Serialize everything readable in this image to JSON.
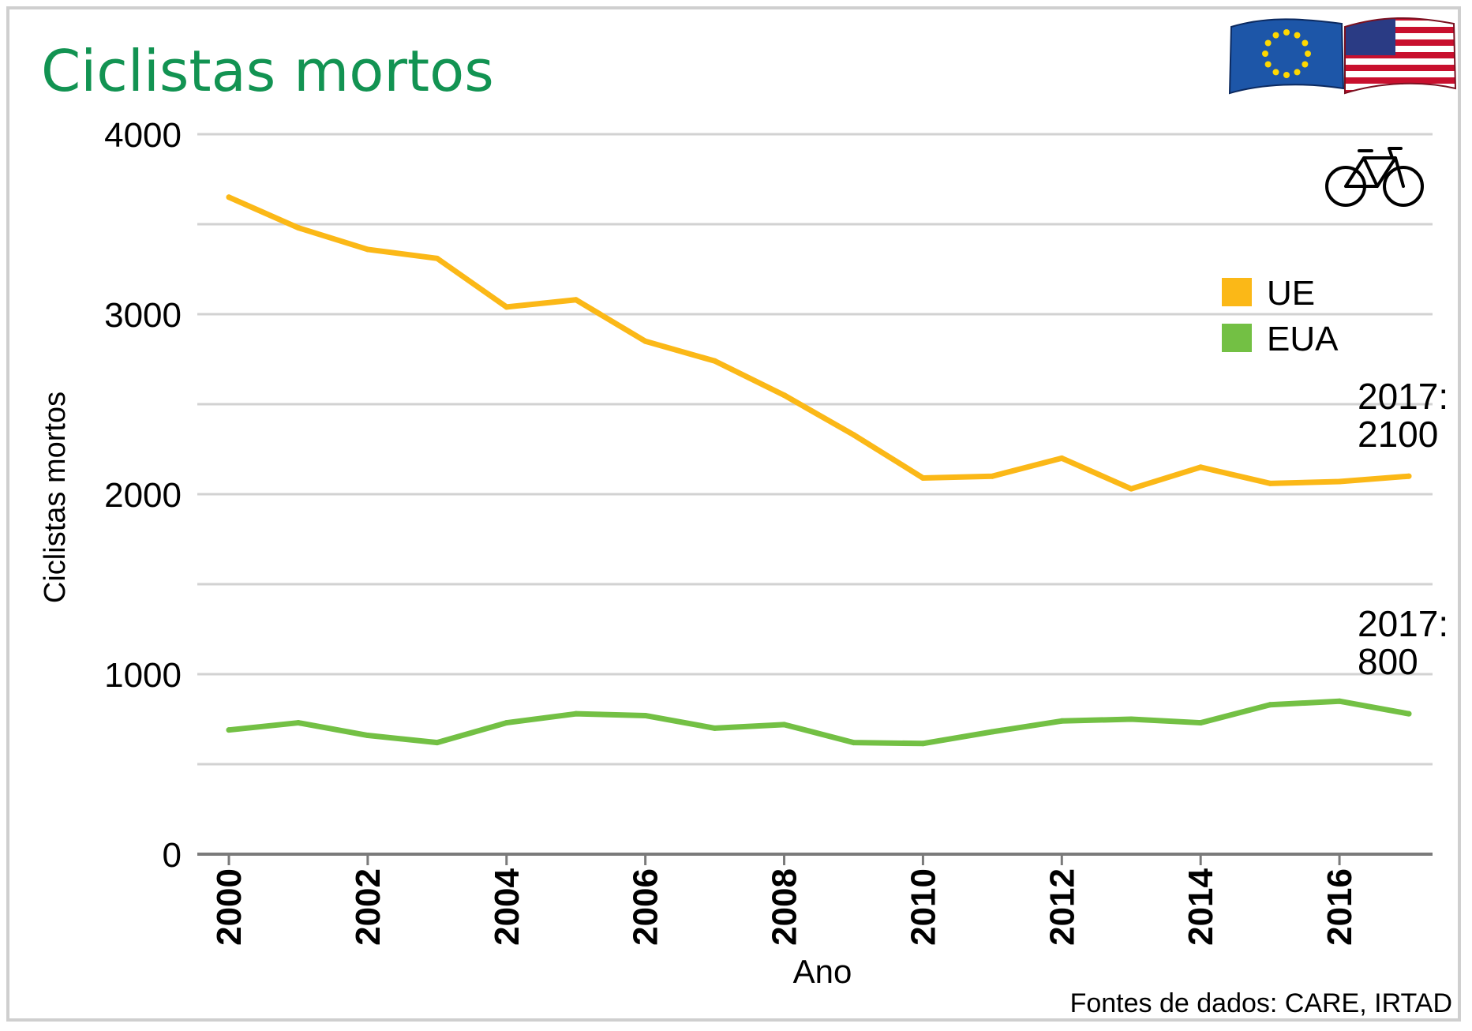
{
  "chart_data": {
    "type": "line",
    "title": "Ciclistas mortos",
    "xlabel": "Ano",
    "ylabel": "Ciclistas mortos",
    "source": "Fontes de dados: CARE, IRTAD",
    "x": [
      2000,
      2001,
      2002,
      2003,
      2004,
      2005,
      2006,
      2007,
      2008,
      2009,
      2010,
      2011,
      2012,
      2013,
      2014,
      2015,
      2016,
      2017
    ],
    "xticks": [
      "2000",
      "2002",
      "2004",
      "2006",
      "2008",
      "2010",
      "2012",
      "2014",
      "2016"
    ],
    "yticks": [
      "0",
      "1000",
      "2000",
      "3000",
      "4000"
    ],
    "ylim": [
      0,
      4000
    ],
    "xlim": [
      2000,
      2017
    ],
    "grid": true,
    "legend_position": "right",
    "series": [
      {
        "name": "UE",
        "color": "#fbb817",
        "values": [
          3650,
          3480,
          3360,
          3310,
          3040,
          3080,
          2850,
          2740,
          2550,
          2330,
          2090,
          2100,
          2200,
          2030,
          2150,
          2060,
          2070,
          2100
        ],
        "end_label": [
          "2017:",
          "2100"
        ]
      },
      {
        "name": "EUA",
        "color": "#73c044",
        "values": [
          690,
          730,
          660,
          620,
          730,
          780,
          770,
          700,
          720,
          620,
          615,
          680,
          740,
          750,
          730,
          830,
          850,
          780
        ],
        "end_label": [
          "2017:",
          "800"
        ]
      }
    ]
  },
  "colors": {
    "title": "#129352",
    "grid": "#d2d2d2",
    "axis": "#7a7a7a",
    "frame": "#cfcfcf",
    "eu_flag": "#1d56a8",
    "eu_star": "#ffd800",
    "us_red": "#c8102e",
    "us_blue": "#2a3b84"
  },
  "icons": [
    "eu-flag-icon",
    "us-flag-icon",
    "bicycle-icon"
  ]
}
